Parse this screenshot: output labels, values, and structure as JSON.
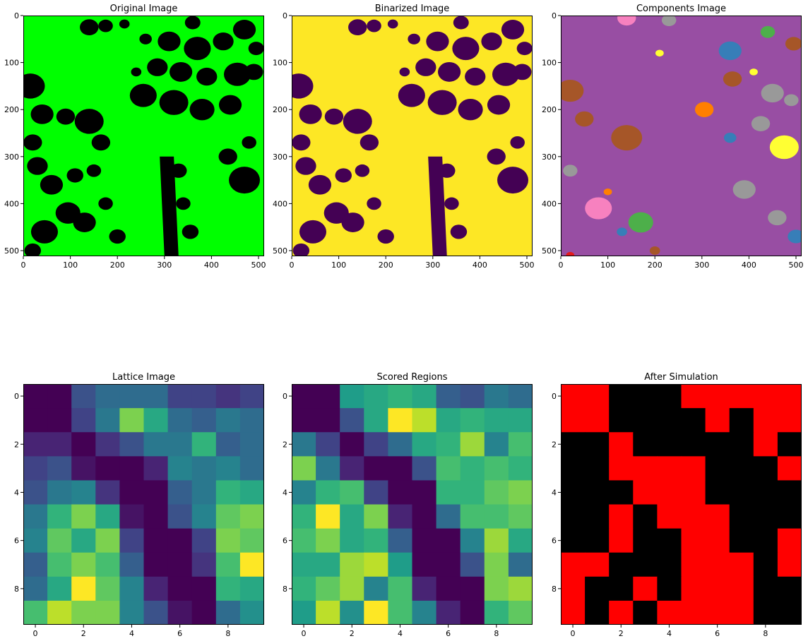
{
  "chart_data": [
    {
      "type": "image",
      "title": "Original Image",
      "xticks": [
        "0",
        "100",
        "200",
        "300",
        "400",
        "500"
      ],
      "yticks": [
        "0",
        "100",
        "200",
        "300",
        "400",
        "500"
      ],
      "xlim": [
        0,
        512
      ],
      "ylim": [
        512,
        0
      ],
      "colors": {
        "foreground": "#00ff00",
        "background": "#000000"
      },
      "blobs": [
        [
          140,
          25,
          18
        ],
        [
          175,
          22,
          14
        ],
        [
          215,
          18,
          10
        ],
        [
          360,
          15,
          15
        ],
        [
          310,
          55,
          22
        ],
        [
          370,
          70,
          26
        ],
        [
          425,
          55,
          20
        ],
        [
          470,
          30,
          22
        ],
        [
          495,
          70,
          15
        ],
        [
          285,
          110,
          20
        ],
        [
          335,
          120,
          22
        ],
        [
          390,
          130,
          20
        ],
        [
          455,
          125,
          26
        ],
        [
          490,
          120,
          18
        ],
        [
          255,
          170,
          26
        ],
        [
          320,
          185,
          28
        ],
        [
          380,
          200,
          24
        ],
        [
          440,
          190,
          22
        ],
        [
          15,
          150,
          28
        ],
        [
          40,
          210,
          22
        ],
        [
          90,
          215,
          18
        ],
        [
          140,
          225,
          28
        ],
        [
          165,
          270,
          18
        ],
        [
          20,
          270,
          18
        ],
        [
          30,
          320,
          20
        ],
        [
          60,
          360,
          22
        ],
        [
          110,
          340,
          16
        ],
        [
          150,
          330,
          14
        ],
        [
          95,
          420,
          24
        ],
        [
          130,
          440,
          22
        ],
        [
          175,
          400,
          14
        ],
        [
          45,
          460,
          26
        ],
        [
          20,
          500,
          16
        ],
        [
          200,
          470,
          16
        ],
        [
          470,
          350,
          30
        ],
        [
          435,
          300,
          18
        ],
        [
          480,
          270,
          14
        ],
        [
          330,
          330,
          16
        ],
        [
          340,
          400,
          14
        ],
        [
          355,
          460,
          16
        ],
        [
          260,
          50,
          12
        ],
        [
          240,
          120,
          10
        ]
      ]
    },
    {
      "type": "image",
      "title": "Binarized Image",
      "xticks": [
        "0",
        "100",
        "200",
        "300",
        "400",
        "500"
      ],
      "yticks": [
        "0",
        "100",
        "200",
        "300",
        "400",
        "500"
      ],
      "xlim": [
        0,
        512
      ],
      "ylim": [
        512,
        0
      ],
      "colors": {
        "foreground": "#fde725",
        "background": "#440154"
      }
    },
    {
      "type": "image",
      "title": "Components Image",
      "xticks": [
        "0",
        "100",
        "200",
        "300",
        "400",
        "500"
      ],
      "yticks": [
        "0",
        "100",
        "200",
        "300",
        "400",
        "500"
      ],
      "xlim": [
        0,
        512
      ],
      "ylim": [
        512,
        0
      ],
      "colors": {
        "background": "#984ea3"
      },
      "components": [
        [
          140,
          5,
          18,
          "#f781bf"
        ],
        [
          230,
          10,
          14,
          "#999999"
        ],
        [
          440,
          35,
          14,
          "#4daf4a"
        ],
        [
          360,
          75,
          22,
          "#377eb8"
        ],
        [
          495,
          60,
          16,
          "#a65628"
        ],
        [
          210,
          80,
          8,
          "#ffff33"
        ],
        [
          365,
          135,
          18,
          "#a65628"
        ],
        [
          450,
          165,
          22,
          "#999999"
        ],
        [
          305,
          200,
          18,
          "#ff7f00"
        ],
        [
          20,
          160,
          26,
          "#a65628"
        ],
        [
          50,
          220,
          18,
          "#a65628"
        ],
        [
          140,
          260,
          30,
          "#a65628"
        ],
        [
          490,
          180,
          14,
          "#999999"
        ],
        [
          475,
          280,
          28,
          "#ffff33"
        ],
        [
          425,
          230,
          18,
          "#999999"
        ],
        [
          390,
          370,
          22,
          "#999999"
        ],
        [
          80,
          410,
          26,
          "#f781bf"
        ],
        [
          170,
          440,
          24,
          "#4daf4a"
        ],
        [
          20,
          330,
          14,
          "#999999"
        ],
        [
          130,
          460,
          10,
          "#377eb8"
        ],
        [
          360,
          260,
          12,
          "#377eb8"
        ],
        [
          200,
          500,
          10,
          "#a65628"
        ],
        [
          500,
          470,
          16,
          "#377eb8"
        ],
        [
          460,
          430,
          18,
          "#999999"
        ],
        [
          20,
          510,
          8,
          "#e41a1c"
        ],
        [
          100,
          375,
          8,
          "#ff7f00"
        ],
        [
          410,
          120,
          8,
          "#ffff33"
        ]
      ]
    },
    {
      "type": "heatmap",
      "title": "Lattice Image",
      "colormap": "viridis",
      "xticks": [
        "0",
        "2",
        "4",
        "6",
        "8"
      ],
      "yticks": [
        "0",
        "2",
        "4",
        "6",
        "8"
      ],
      "values": [
        [
          0.0,
          0.0,
          0.25,
          0.35,
          0.35,
          0.35,
          0.2,
          0.2,
          0.15,
          0.2
        ],
        [
          0.0,
          0.0,
          0.2,
          0.4,
          0.8,
          0.6,
          0.35,
          0.3,
          0.4,
          0.35
        ],
        [
          0.1,
          0.1,
          0.0,
          0.15,
          0.25,
          0.4,
          0.4,
          0.65,
          0.3,
          0.35
        ],
        [
          0.2,
          0.25,
          0.05,
          0.0,
          0.0,
          0.1,
          0.45,
          0.4,
          0.45,
          0.35
        ],
        [
          0.25,
          0.4,
          0.45,
          0.15,
          0.0,
          0.0,
          0.3,
          0.4,
          0.65,
          0.6
        ],
        [
          0.4,
          0.65,
          0.8,
          0.6,
          0.05,
          0.0,
          0.25,
          0.45,
          0.75,
          0.8
        ],
        [
          0.45,
          0.75,
          0.6,
          0.8,
          0.2,
          0.0,
          0.0,
          0.2,
          0.8,
          0.75
        ],
        [
          0.3,
          0.7,
          0.8,
          0.7,
          0.3,
          0.0,
          0.0,
          0.15,
          0.7,
          1.0
        ],
        [
          0.35,
          0.6,
          1.0,
          0.75,
          0.45,
          0.1,
          0.0,
          0.0,
          0.65,
          0.6
        ],
        [
          0.7,
          0.9,
          0.8,
          0.8,
          0.45,
          0.25,
          0.05,
          0.0,
          0.35,
          0.5
        ]
      ]
    },
    {
      "type": "heatmap",
      "title": "Scored Regions",
      "colormap": "viridis",
      "xticks": [
        "0",
        "2",
        "4",
        "6",
        "8"
      ],
      "yticks": [
        "0",
        "2",
        "4",
        "6",
        "8"
      ],
      "values": [
        [
          0.0,
          0.0,
          0.55,
          0.6,
          0.65,
          0.6,
          0.3,
          0.25,
          0.4,
          0.35
        ],
        [
          0.0,
          0.0,
          0.25,
          0.6,
          1.0,
          0.9,
          0.6,
          0.65,
          0.6,
          0.6
        ],
        [
          0.4,
          0.2,
          0.0,
          0.2,
          0.35,
          0.6,
          0.65,
          0.85,
          0.45,
          0.7
        ],
        [
          0.8,
          0.4,
          0.1,
          0.0,
          0.0,
          0.25,
          0.7,
          0.65,
          0.7,
          0.65
        ],
        [
          0.45,
          0.65,
          0.7,
          0.2,
          0.0,
          0.0,
          0.65,
          0.65,
          0.75,
          0.8
        ],
        [
          0.65,
          1.0,
          0.6,
          0.8,
          0.1,
          0.0,
          0.35,
          0.7,
          0.7,
          0.75
        ],
        [
          0.7,
          0.8,
          0.6,
          0.65,
          0.3,
          0.0,
          0.0,
          0.45,
          0.85,
          0.6
        ],
        [
          0.6,
          0.6,
          0.85,
          0.9,
          0.55,
          0.0,
          0.0,
          0.25,
          0.8,
          0.35
        ],
        [
          0.65,
          0.75,
          0.85,
          0.45,
          0.7,
          0.1,
          0.0,
          0.0,
          0.8,
          0.85
        ],
        [
          0.55,
          0.9,
          0.5,
          1.0,
          0.7,
          0.45,
          0.1,
          0.0,
          0.65,
          0.75
        ]
      ]
    },
    {
      "type": "heatmap",
      "title": "After Simulation",
      "colormap": "binary-red",
      "colors": {
        "on": "#ff0000",
        "off": "#000000"
      },
      "xticks": [
        "0",
        "2",
        "4",
        "6",
        "8"
      ],
      "yticks": [
        "0",
        "2",
        "4",
        "6",
        "8"
      ],
      "values": [
        [
          1,
          1,
          0,
          0,
          0,
          1,
          1,
          1,
          1,
          1
        ],
        [
          1,
          1,
          0,
          0,
          0,
          0,
          1,
          0,
          1,
          1
        ],
        [
          0,
          0,
          1,
          0,
          0,
          0,
          0,
          0,
          1,
          0
        ],
        [
          0,
          0,
          1,
          1,
          1,
          1,
          0,
          0,
          0,
          1
        ],
        [
          0,
          0,
          0,
          1,
          1,
          1,
          0,
          0,
          0,
          0
        ],
        [
          0,
          0,
          1,
          0,
          1,
          1,
          1,
          0,
          0,
          0
        ],
        [
          0,
          0,
          1,
          0,
          0,
          1,
          1,
          0,
          0,
          1
        ],
        [
          1,
          1,
          0,
          0,
          0,
          1,
          1,
          1,
          0,
          1
        ],
        [
          1,
          0,
          0,
          1,
          0,
          1,
          1,
          1,
          0,
          0
        ],
        [
          1,
          0,
          1,
          0,
          1,
          1,
          1,
          1,
          0,
          0
        ]
      ]
    }
  ]
}
